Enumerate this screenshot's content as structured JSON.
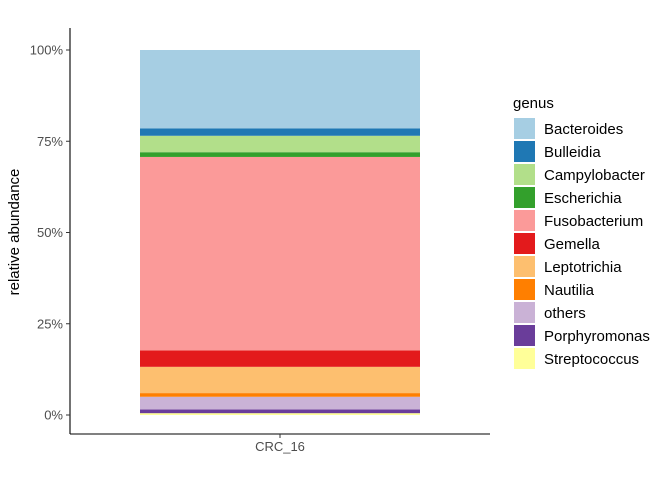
{
  "chart_data": {
    "type": "bar",
    "stacked": true,
    "categories": [
      "CRC_16"
    ],
    "ylabel": "relative abundance",
    "xlabel": "",
    "ylim": [
      0,
      1
    ],
    "y_ticks": [
      0,
      0.25,
      0.5,
      0.75,
      1.0
    ],
    "y_tick_labels": [
      "0%",
      "25%",
      "50%",
      "75%",
      "100%"
    ],
    "grid": false,
    "legend": {
      "title": "genus",
      "position": "right"
    },
    "series": [
      {
        "name": "Bacteroides",
        "color": "#A6CEE3",
        "values": [
          0.215
        ]
      },
      {
        "name": "Bulleidia",
        "color": "#1F78B4",
        "values": [
          0.02
        ]
      },
      {
        "name": "Campylobacter",
        "color": "#B2DF8A",
        "values": [
          0.045
        ]
      },
      {
        "name": "Escherichia",
        "color": "#33A02C",
        "values": [
          0.013
        ]
      },
      {
        "name": "Fusobacterium",
        "color": "#FB9A99",
        "values": [
          0.53
        ]
      },
      {
        "name": "Gemella",
        "color": "#E31A1C",
        "values": [
          0.045
        ]
      },
      {
        "name": "Leptotrichia",
        "color": "#FDBF6F",
        "values": [
          0.072
        ]
      },
      {
        "name": "Nautilia",
        "color": "#FF7F00",
        "values": [
          0.01
        ]
      },
      {
        "name": "others",
        "color": "#CAB2D6",
        "values": [
          0.035
        ]
      },
      {
        "name": "Porphyromonas",
        "color": "#6A3D9A",
        "values": [
          0.01
        ]
      },
      {
        "name": "Streptococcus",
        "color": "#FFFF99",
        "values": [
          0.005
        ]
      }
    ]
  }
}
